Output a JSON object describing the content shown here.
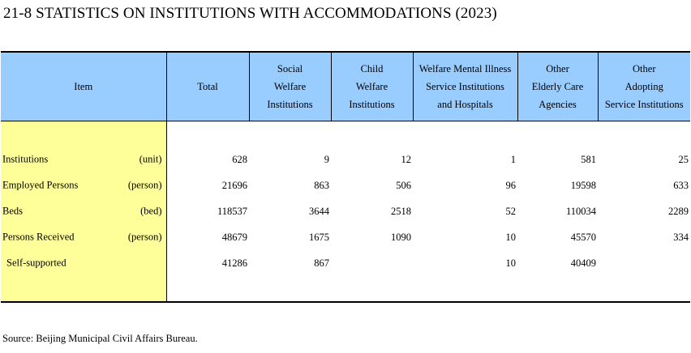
{
  "title": "21-8  STATISTICS ON INSTITUTIONS WITH ACCOMMODATIONS (2023)",
  "header": {
    "item": "Item",
    "total": "Total",
    "social_welfare": [
      "Social",
      "Welfare",
      "Institutions"
    ],
    "child_welfare": [
      "Child",
      "Welfare",
      "Institutions"
    ],
    "mental_illness": [
      "Welfare Mental Illness",
      "Service Institutions",
      "and Hospitals"
    ],
    "elderly_care": [
      "Other",
      "Elderly Care",
      "Agencies"
    ],
    "adopting": [
      "Other",
      "Adopting",
      "Service Institutions"
    ]
  },
  "rows": [
    {
      "label": "Institutions",
      "unit": "(unit)",
      "values": [
        "628",
        "9",
        "12",
        "1",
        "581",
        "25"
      ]
    },
    {
      "label": "Employed Persons",
      "unit": "(person)",
      "values": [
        "21696",
        "863",
        "506",
        "96",
        "19598",
        "633"
      ]
    },
    {
      "label": "Beds",
      "unit": "(bed)",
      "values": [
        "118537",
        "3644",
        "2518",
        "52",
        "110034",
        "2289"
      ]
    },
    {
      "label": "Persons Received",
      "unit": "(person)",
      "values": [
        "48679",
        "1675",
        "1090",
        "10",
        "45570",
        "334"
      ]
    },
    {
      "label": "Self-supported",
      "unit": "",
      "values": [
        "41286",
        "867",
        "",
        "10",
        "40409",
        ""
      ]
    }
  ],
  "source": "Source: Beijing Municipal Civil Affairs Bureau."
}
